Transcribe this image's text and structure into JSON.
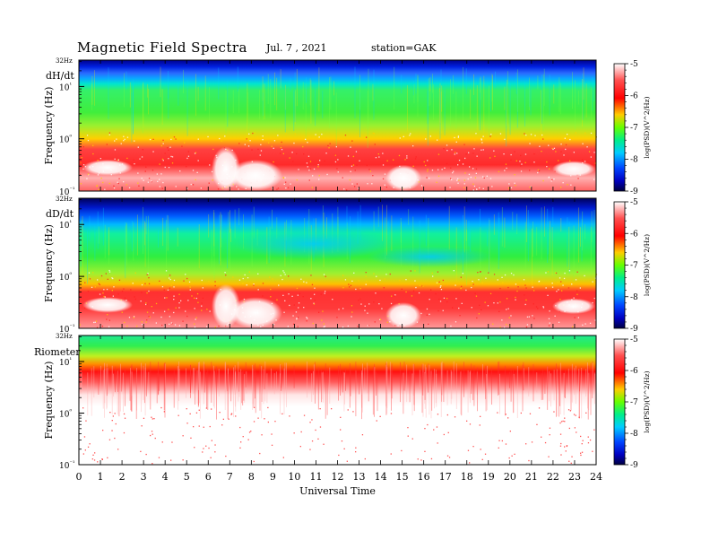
{
  "header": {
    "title": "Magnetic  Field  Spectra",
    "date": "Jul.  7  , 2021",
    "station": "station=GAK"
  },
  "chart_data": [
    {
      "type": "heatmap",
      "panel_label": "dH/dt",
      "ylabel": "Frequency  (Hz)",
      "top_label": "32Hz",
      "ytick_labels": [
        "10⁻¹",
        "10⁰",
        "10¹"
      ],
      "ylim": [
        0.1,
        32
      ],
      "yscale": "log",
      "colorbar": {
        "label": "log(PSD)(V^2/Hz)",
        "ticks": [
          "-5",
          "-6",
          "-7",
          "-8",
          "-9"
        ],
        "range": [
          -9,
          -5
        ]
      },
      "description_levels": {
        "top_band": "blue",
        "middle": "green-cyan",
        "low_freq": "red-white"
      }
    },
    {
      "type": "heatmap",
      "panel_label": "dD/dt",
      "ylabel": "Frequency  (Hz)",
      "top_label": "32Hz",
      "ytick_labels": [
        "10⁻¹",
        "10⁰",
        "10¹"
      ],
      "ylim": [
        0.1,
        32
      ],
      "yscale": "log",
      "colorbar": {
        "label": "log(PSD)(V^2/Hz)",
        "ticks": [
          "-5",
          "-6",
          "-7",
          "-8",
          "-9"
        ],
        "range": [
          -9,
          -5
        ]
      }
    },
    {
      "type": "heatmap",
      "panel_label": "Riometer",
      "ylabel": "Frequency  (Hz)",
      "top_label": "32Hz",
      "ytick_labels": [
        "10⁻¹",
        "10⁰",
        "10¹"
      ],
      "ylim": [
        0.1,
        32
      ],
      "yscale": "log",
      "xlabel": "Universal Time",
      "xtick_labels": [
        "0",
        "1",
        "2",
        "3",
        "4",
        "5",
        "6",
        "7",
        "8",
        "9",
        "10",
        "11",
        "12",
        "13",
        "14",
        "15",
        "16",
        "17",
        "18",
        "19",
        "20",
        "21",
        "22",
        "23",
        "24"
      ],
      "xlim": [
        0,
        24
      ],
      "colorbar": {
        "label": "log(PSD)(V^2/Hz)",
        "ticks": [
          "-5",
          "-6",
          "-7",
          "-8",
          "-9"
        ],
        "range": [
          -9,
          -5
        ]
      }
    }
  ]
}
